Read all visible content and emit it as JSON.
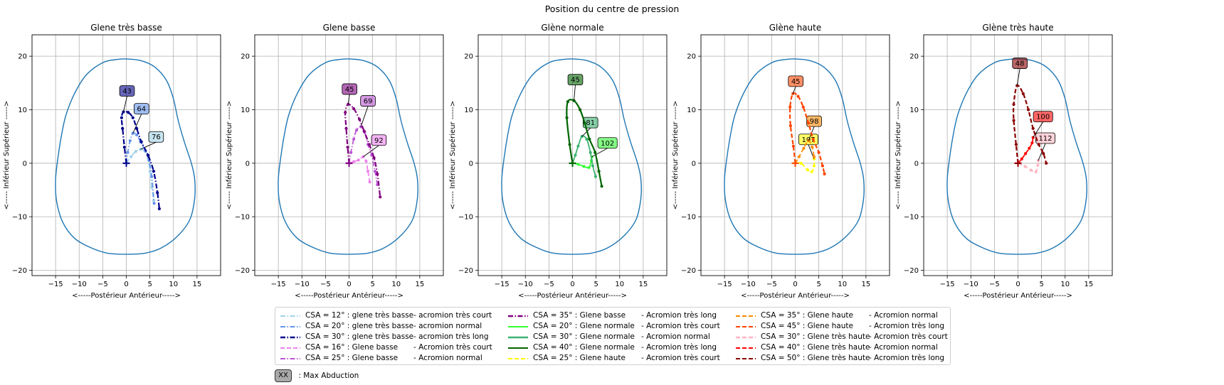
{
  "figure_title": "Position du centre de pression",
  "max_abduction_key": {
    "badge": "XX",
    "label": ": Max Abduction"
  },
  "glenoid_outline_color": "#1f77b4",
  "chart_data": [
    {
      "type": "line",
      "title": "Glene très basse",
      "xlabel": "<-----Postérieur                    Antérieur----->",
      "ylabel": "<----- Inférieur                    Supérieur ----->",
      "xlim": [
        -20,
        20
      ],
      "ylim": [
        -21,
        24
      ],
      "xticks": [
        -15,
        -10,
        -5,
        0,
        5,
        10,
        15
      ],
      "yticks": [
        -20,
        -10,
        0,
        10,
        20
      ],
      "grid": true,
      "series": [
        {
          "name": "CSA = 12° : glene très basse",
          "color": "#a3d3e8",
          "dash": "dashdot",
          "label": "76",
          "points": [
            [
              0,
              0
            ],
            [
              1,
              1.2
            ],
            [
              2,
              2.2
            ],
            [
              3,
              2.6
            ],
            [
              4,
              2.2
            ],
            [
              4.6,
              1
            ],
            [
              5,
              -1.5
            ],
            [
              5.4,
              -4.5
            ],
            [
              5.8,
              -7
            ]
          ]
        },
        {
          "name": "CSA = 20° : glene très basse",
          "color": "#6495ed",
          "dash": "dashdot",
          "label": "64",
          "points": [
            [
              0,
              0
            ],
            [
              0.3,
              2
            ],
            [
              0.8,
              4.2
            ],
            [
              1.4,
              5.6
            ],
            [
              2.2,
              5.3
            ],
            [
              3,
              4
            ],
            [
              4,
              2.4
            ],
            [
              4.8,
              0.5
            ],
            [
              5.4,
              -2.5
            ],
            [
              5.9,
              -7.5
            ]
          ]
        },
        {
          "name": "CSA = 30° : glene très basse",
          "color": "#00008b",
          "dash": "dashdot",
          "label": "43",
          "points": [
            [
              0,
              0
            ],
            [
              -0.4,
              3
            ],
            [
              -0.8,
              6.5
            ],
            [
              -1,
              8.5
            ],
            [
              -0.6,
              9.6
            ],
            [
              0.4,
              9.5
            ],
            [
              1.4,
              8.5
            ],
            [
              2.2,
              6.5
            ],
            [
              3.2,
              4
            ],
            [
              4.6,
              1.5
            ],
            [
              5.8,
              -1.5
            ],
            [
              6.6,
              -5.5
            ],
            [
              7,
              -8.5
            ]
          ]
        }
      ]
    },
    {
      "type": "line",
      "title": "Glene basse",
      "xlabel": "<-----Postérieur                    Antérieur----->",
      "ylabel": "<----- Inférieur                    Supérieur ----->",
      "xlim": [
        -20,
        20
      ],
      "ylim": [
        -21,
        24
      ],
      "xticks": [
        -15,
        -10,
        -5,
        0,
        5,
        10,
        15
      ],
      "yticks": [
        -20,
        -10,
        0,
        10,
        20
      ],
      "grid": true,
      "series": [
        {
          "name": "CSA = 16° : Glene basse",
          "color": "#ee82ee",
          "dash": "dashed",
          "label": "92",
          "points": [
            [
              0,
              0
            ],
            [
              1,
              0.3
            ],
            [
              2,
              0.6
            ],
            [
              3,
              1.2
            ],
            [
              3.6,
              0.4
            ],
            [
              4,
              -1.5
            ],
            [
              4.4,
              -3.5
            ]
          ]
        },
        {
          "name": "CSA = 25° : Glene basse",
          "color": "#ba55d3",
          "dash": "dashdot",
          "label": "69",
          "points": [
            [
              0,
              0
            ],
            [
              0.4,
              2
            ],
            [
              1,
              4.5
            ],
            [
              1.6,
              6.2
            ],
            [
              2.5,
              6.8
            ],
            [
              3.3,
              5.8
            ],
            [
              4,
              3.5
            ],
            [
              4.8,
              1.5
            ],
            [
              5.5,
              -1.5
            ],
            [
              6,
              -4
            ]
          ]
        },
        {
          "name": "CSA = 35° : Glene basse",
          "color": "#800080",
          "dash": "dashdot",
          "label": "45",
          "points": [
            [
              0,
              0
            ],
            [
              -0.3,
              3
            ],
            [
              -0.6,
              6.5
            ],
            [
              -0.8,
              9.5
            ],
            [
              -0.2,
              11
            ],
            [
              1,
              10.2
            ],
            [
              2.2,
              8.2
            ],
            [
              3.2,
              6
            ],
            [
              4.3,
              3.5
            ],
            [
              5.3,
              1
            ],
            [
              6,
              -2
            ],
            [
              6.6,
              -6.3
            ]
          ]
        }
      ]
    },
    {
      "type": "line",
      "title": "Glène normale",
      "xlabel": "<-----Postérieur                    Antérieur----->",
      "ylabel": "<----- Inférieur                    Supérieur ----->",
      "xlim": [
        -20,
        20
      ],
      "ylim": [
        -21,
        24
      ],
      "xticks": [
        -15,
        -10,
        -5,
        0,
        5,
        10,
        15
      ],
      "yticks": [
        -20,
        -10,
        0,
        10,
        20
      ],
      "grid": true,
      "series": [
        {
          "name": "CSA = 20° : Glene normale",
          "color": "#33ff33",
          "dash": "solid",
          "label": "102",
          "points": [
            [
              0,
              0
            ],
            [
              1.2,
              -0.2
            ],
            [
              2.4,
              -0.6
            ],
            [
              3.5,
              -0.8
            ],
            [
              4,
              0.5
            ],
            [
              4.1,
              1.2
            ]
          ]
        },
        {
          "name": "CSA = 30° : Glene normale",
          "color": "#3cb371",
          "dash": "solid",
          "label": "81",
          "points": [
            [
              0,
              0
            ],
            [
              0.6,
              1.5
            ],
            [
              1.2,
              3.2
            ],
            [
              2,
              5
            ],
            [
              3,
              4.5
            ],
            [
              3.8,
              2
            ],
            [
              4.3,
              -0.5
            ],
            [
              4.9,
              -2.5
            ]
          ]
        },
        {
          "name": "CSA = 40° : Glene normale",
          "color": "#006400",
          "dash": "solid",
          "label": "45",
          "points": [
            [
              0,
              0
            ],
            [
              -0.6,
              3.5
            ],
            [
              -1.2,
              8.5
            ],
            [
              -1,
              11.5
            ],
            [
              0.3,
              11.7
            ],
            [
              1.6,
              10
            ],
            [
              2.6,
              7.5
            ],
            [
              3.6,
              4.5
            ],
            [
              4.8,
              2
            ],
            [
              5.6,
              -1.5
            ],
            [
              6.2,
              -4.3
            ]
          ]
        }
      ]
    },
    {
      "type": "line",
      "title": "Glène haute",
      "xlabel": "<-----Postérieur                    Antérieur----->",
      "ylabel": "<----- Inférieur                    Supérieur ----->",
      "xlim": [
        -20,
        20
      ],
      "ylim": [
        -21,
        24
      ],
      "xticks": [
        -15,
        -10,
        -5,
        0,
        5,
        10,
        15
      ],
      "yticks": [
        -20,
        -10,
        0,
        10,
        20
      ],
      "grid": true,
      "series": [
        {
          "name": "CSA = 25° : Glene haute",
          "color": "#ffff00",
          "dash": "dashed",
          "label": "107",
          "points": [
            [
              0,
              0
            ],
            [
              1.2,
              0
            ],
            [
              2.6,
              -1.2
            ],
            [
              3.5,
              -1.6
            ],
            [
              4,
              -0.5
            ],
            [
              4,
              0.8
            ]
          ]
        },
        {
          "name": "CSA = 35° : Glene haute",
          "color": "#ff8c00",
          "dash": "dashed",
          "label": "98",
          "points": [
            [
              0,
              0
            ],
            [
              0.8,
              1.2
            ],
            [
              1.8,
              2.8
            ],
            [
              2.8,
              4.2
            ],
            [
              3.6,
              3
            ],
            [
              4,
              1.2
            ]
          ]
        },
        {
          "name": "CSA = 45° : Glene haute",
          "color": "#ff4500",
          "dash": "dashed",
          "label": "45",
          "points": [
            [
              0,
              0
            ],
            [
              -0.4,
              3.2
            ],
            [
              -1,
              7
            ],
            [
              -1.1,
              10.5
            ],
            [
              -0.5,
              13
            ],
            [
              0.6,
              12.5
            ],
            [
              1.7,
              10.5
            ],
            [
              2.8,
              7.5
            ],
            [
              3.8,
              4.5
            ],
            [
              5,
              2
            ],
            [
              5.8,
              -0.5
            ],
            [
              6.2,
              -2
            ]
          ]
        }
      ]
    },
    {
      "type": "line",
      "title": "Glène très haute",
      "xlabel": "<-----Postérieur                    Antérieur----->",
      "ylabel": "<----- Inférieur                    Supérieur ----->",
      "xlim": [
        -20,
        20
      ],
      "ylim": [
        -21,
        24
      ],
      "xticks": [
        -15,
        -10,
        -5,
        0,
        5,
        10,
        15
      ],
      "yticks": [
        -20,
        -10,
        0,
        10,
        20
      ],
      "grid": true,
      "series": [
        {
          "name": "CSA = 30° : Glene très haute",
          "color": "#ffb6c1",
          "dash": "dashed",
          "label": "112",
          "points": [
            [
              0,
              0
            ],
            [
              1.5,
              -0.6
            ],
            [
              2.8,
              -1.3
            ],
            [
              3.8,
              -1.6
            ],
            [
              4.2,
              -0.4
            ],
            [
              4.3,
              0.5
            ]
          ]
        },
        {
          "name": "CSA = 40° : Glene très haute",
          "color": "#ff0000",
          "dash": "dashed",
          "label": "100",
          "points": [
            [
              0,
              0
            ],
            [
              0.8,
              0.8
            ],
            [
              1.6,
              1.8
            ],
            [
              2.4,
              2.8
            ],
            [
              3,
              3.8
            ],
            [
              3.2,
              4.8
            ]
          ]
        },
        {
          "name": "CSA = 50° : Glene très haute",
          "color": "#8b0000",
          "dash": "dashed",
          "label": "48",
          "points": [
            [
              0,
              0
            ],
            [
              -0.4,
              3.5
            ],
            [
              -0.9,
              8
            ],
            [
              -0.9,
              11
            ],
            [
              -0.2,
              14.5
            ],
            [
              1.1,
              13
            ],
            [
              2.2,
              10
            ],
            [
              3.2,
              6.5
            ],
            [
              4.4,
              3.5
            ],
            [
              5.4,
              1.8
            ],
            [
              6,
              0
            ]
          ]
        }
      ]
    }
  ],
  "legend": {
    "columns": [
      [
        {
          "series": "CSA = 12° : glene très basse",
          "acromion": "-  acromion très court"
        },
        {
          "series": "CSA = 20° : glene très basse",
          "acromion": "-  acromion normal"
        },
        {
          "series": "CSA = 30° : glene très basse",
          "acromion": "-  acromion très long"
        },
        {
          "series": "CSA = 16° : Glene basse",
          "acromion": "-  Acromion très court"
        },
        {
          "series": "CSA = 25° : Glene basse",
          "acromion": "-  Acromion normal"
        }
      ],
      [
        {
          "series": "CSA = 35° : Glene basse",
          "acromion": "-  Acromion très long"
        },
        {
          "series": "CSA = 20° : Glene normale",
          "acromion": "-  Acromion très court"
        },
        {
          "series": "CSA = 30° : Glene normale",
          "acromion": "-  Acromion normal"
        },
        {
          "series": "CSA = 40° : Glene normale",
          "acromion": "-  Acromion très long"
        },
        {
          "series": "CSA = 25° : Glene haute",
          "acromion": "-  Acromion très court"
        }
      ],
      [
        {
          "series": "CSA = 35° : Glene haute",
          "acromion": "-  Acromion normal"
        },
        {
          "series": "CSA = 45° : Glene haute",
          "acromion": "-  Acromion très long"
        },
        {
          "series": "CSA = 30° : Glene très haute",
          "acromion": "-  Acromion très court"
        },
        {
          "series": "CSA = 40° : Glene très haute",
          "acromion": "-  Acromion normal"
        },
        {
          "series": "CSA = 50° : Glene très haute",
          "acromion": "-  Acromion très long"
        }
      ]
    ]
  }
}
